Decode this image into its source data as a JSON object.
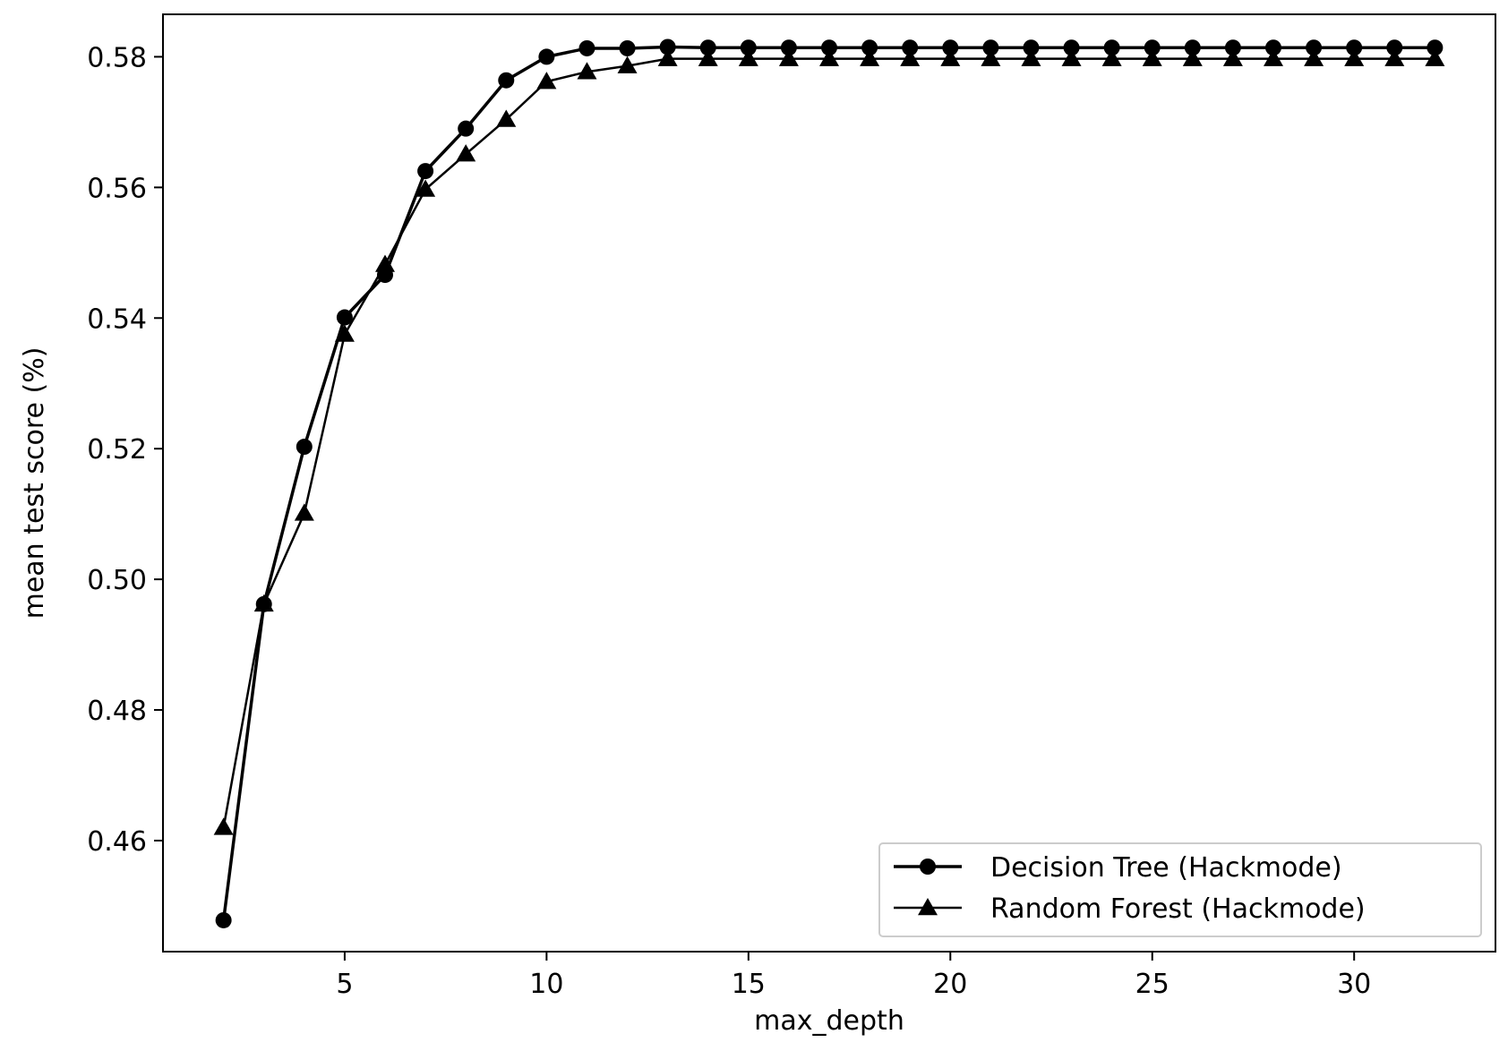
{
  "chart_data": {
    "type": "line",
    "xlabel": "max_depth",
    "ylabel": "mean test score (%)",
    "xlim": [
      0.5,
      33.5
    ],
    "ylim": [
      0.443,
      0.5865
    ],
    "xticks": [
      5,
      10,
      15,
      20,
      25,
      30
    ],
    "yticks": [
      0.46,
      0.48,
      0.5,
      0.52,
      0.54,
      0.56,
      0.58
    ],
    "ytick_labels": [
      "0.46",
      "0.48",
      "0.50",
      "0.52",
      "0.54",
      "0.56",
      "0.58"
    ],
    "grid": false,
    "legend_position": "lower-right",
    "x": [
      2,
      3,
      4,
      5,
      6,
      7,
      8,
      9,
      10,
      11,
      12,
      13,
      14,
      15,
      16,
      17,
      18,
      19,
      20,
      21,
      22,
      23,
      24,
      25,
      26,
      27,
      28,
      29,
      30,
      31,
      32
    ],
    "series": [
      {
        "name": "Decision Tree (Hackmode)",
        "marker": "circle",
        "color": "#000000",
        "values": [
          0.4478,
          0.4962,
          0.5203,
          0.5401,
          0.5466,
          0.5625,
          0.569,
          0.5764,
          0.58,
          0.5813,
          0.5813,
          0.5815,
          0.5814,
          0.5814,
          0.5814,
          0.5814,
          0.5814,
          0.5814,
          0.5814,
          0.5814,
          0.5814,
          0.5814,
          0.5814,
          0.5814,
          0.5814,
          0.5814,
          0.5814,
          0.5814,
          0.5814,
          0.5814,
          0.5814
        ]
      },
      {
        "name": "Random Forest (Hackmode)",
        "marker": "triangle",
        "color": "#000000",
        "values": [
          0.462,
          0.4962,
          0.5101,
          0.5375,
          0.5482,
          0.5597,
          0.5651,
          0.5704,
          0.5762,
          0.5777,
          0.5786,
          0.5797,
          0.5797,
          0.5797,
          0.5797,
          0.5797,
          0.5797,
          0.5797,
          0.5797,
          0.5797,
          0.5797,
          0.5797,
          0.5797,
          0.5797,
          0.5797,
          0.5797,
          0.5797,
          0.5797,
          0.5797,
          0.5797,
          0.5797
        ]
      }
    ]
  }
}
